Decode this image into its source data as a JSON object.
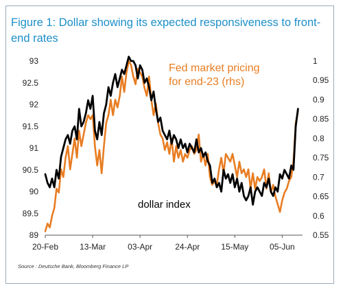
{
  "figure": {
    "title": "Figure 1: Dollar showing its expected responsiveness to front-end rates",
    "source": "Source : Deutsche Bank, Bloomberg Finance LP"
  },
  "chart_data": {
    "type": "line",
    "title": "Figure 1: Dollar showing its expected responsiveness to front-end rates",
    "x_tick_labels": [
      "20-Feb",
      "13-Mar",
      "03-Apr",
      "24-Apr",
      "15-May",
      "05-Jun"
    ],
    "x_ticks_day": [
      0,
      21,
      42,
      63,
      84,
      105
    ],
    "x_range_day": [
      0,
      114
    ],
    "y_left": {
      "lim": [
        89,
        93
      ],
      "ticks": [
        89,
        89.5,
        90,
        90.5,
        91,
        91.5,
        92,
        92.5,
        93
      ]
    },
    "y_right": {
      "lim": [
        0.55,
        1.0
      ],
      "ticks": [
        0.55,
        0.6,
        0.65,
        0.7,
        0.75,
        0.8,
        0.85,
        0.9,
        0.95,
        1.0
      ]
    },
    "grid": false,
    "series": [
      {
        "name": "dollar index",
        "axis": "left",
        "color": "#000000",
        "x": [
          0,
          1,
          2,
          3,
          4,
          5,
          6,
          7,
          8,
          9,
          10,
          11,
          12,
          13,
          14,
          15,
          16,
          17,
          18,
          19,
          20,
          21,
          22,
          23,
          24,
          25,
          26,
          27,
          28,
          29,
          30,
          31,
          32,
          33,
          34,
          35,
          36,
          37,
          38,
          39,
          40,
          41,
          42,
          43,
          44,
          45,
          46,
          47,
          48,
          49,
          50,
          51,
          52,
          53,
          54,
          55,
          56,
          57,
          58,
          59,
          60,
          61,
          62,
          63,
          64,
          65,
          66,
          67,
          68,
          69,
          70,
          71,
          72,
          73,
          74,
          75,
          76,
          77,
          78,
          79,
          80,
          81,
          82,
          83,
          84,
          85,
          86,
          87,
          88,
          89,
          90,
          91,
          92,
          93,
          94,
          95,
          96,
          97,
          98,
          99,
          100,
          101,
          102,
          103,
          104,
          105,
          106,
          107,
          108,
          109,
          110,
          111,
          112
        ],
        "values": [
          90.4,
          90.2,
          90.1,
          90.3,
          90.1,
          90.5,
          90.3,
          90.8,
          91.0,
          91.2,
          91.3,
          91.1,
          91.4,
          91.5,
          91.2,
          91.9,
          91.5,
          91.6,
          91.8,
          92.1,
          91.9,
          92.2,
          91.4,
          91.2,
          91.6,
          91.3,
          91.8,
          92.0,
          92.4,
          92.2,
          92.5,
          92.7,
          92.4,
          92.6,
          92.8,
          92.7,
          92.9,
          93.1,
          93.0,
          93.0,
          92.9,
          92.6,
          92.9,
          92.8,
          92.5,
          92.6,
          92.4,
          92.1,
          92.3,
          91.9,
          91.6,
          91.7,
          91.4,
          91.3,
          91.2,
          91.4,
          91.1,
          91.3,
          91.2,
          91.0,
          91.2,
          91.0,
          91.1,
          90.9,
          91.1,
          91.0,
          90.9,
          91.2,
          90.9,
          91.0,
          90.8,
          90.9,
          90.7,
          90.6,
          90.2,
          90.3,
          90.1,
          90.2,
          90.0,
          90.5,
          90.3,
          90.4,
          90.2,
          90.4,
          90.1,
          90.3,
          90.0,
          90.2,
          89.9,
          89.8,
          89.9,
          90.1,
          89.7,
          90.0,
          90.1,
          90.0,
          89.9,
          90.2,
          90.1,
          90.3,
          90.0,
          89.9,
          90.1,
          90.0,
          90.4,
          90.3,
          90.5,
          90.4,
          90.3,
          90.6,
          90.5,
          91.5,
          91.9
        ]
      },
      {
        "name": "Fed market pricing for end-23 (rhs)",
        "axis": "right",
        "color": "#e87d22",
        "x": [
          0,
          1,
          2,
          3,
          4,
          5,
          6,
          7,
          8,
          9,
          10,
          11,
          12,
          13,
          14,
          15,
          16,
          17,
          18,
          19,
          20,
          21,
          22,
          23,
          24,
          25,
          26,
          27,
          28,
          29,
          30,
          31,
          32,
          33,
          34,
          35,
          36,
          37,
          38,
          39,
          40,
          41,
          42,
          43,
          44,
          45,
          46,
          47,
          48,
          49,
          50,
          51,
          52,
          53,
          54,
          55,
          56,
          57,
          58,
          59,
          60,
          61,
          62,
          63,
          64,
          65,
          66,
          67,
          68,
          69,
          70,
          71,
          72,
          73,
          74,
          75,
          76,
          77,
          78,
          79,
          80,
          81,
          82,
          83,
          84,
          85,
          86,
          87,
          88,
          89,
          90,
          91,
          92,
          93,
          94,
          95,
          96,
          97,
          98,
          99,
          100,
          101,
          102,
          103,
          104,
          105,
          106,
          107,
          108,
          109,
          110,
          111,
          112
        ],
        "values": [
          0.56,
          0.58,
          0.57,
          0.6,
          0.62,
          0.67,
          0.66,
          0.72,
          0.7,
          0.75,
          0.78,
          0.72,
          0.76,
          0.8,
          0.75,
          0.82,
          0.78,
          0.81,
          0.84,
          0.86,
          0.85,
          0.86,
          0.78,
          0.73,
          0.77,
          0.71,
          0.78,
          0.84,
          0.86,
          0.9,
          0.86,
          0.9,
          0.88,
          0.91,
          0.96,
          0.92,
          0.97,
          1.0,
          0.99,
          0.96,
          0.94,
          0.98,
          0.97,
          0.96,
          0.93,
          0.91,
          0.96,
          0.9,
          0.86,
          0.89,
          0.84,
          0.81,
          0.8,
          0.77,
          0.79,
          0.76,
          0.8,
          0.74,
          0.78,
          0.75,
          0.77,
          0.74,
          0.76,
          0.75,
          0.77,
          0.78,
          0.76,
          0.77,
          0.81,
          0.74,
          0.76,
          0.73,
          0.76,
          0.7,
          0.68,
          0.69,
          0.68,
          0.72,
          0.75,
          0.71,
          0.76,
          0.75,
          0.74,
          0.76,
          0.73,
          0.7,
          0.74,
          0.71,
          0.72,
          0.7,
          0.72,
          0.67,
          0.71,
          0.67,
          0.7,
          0.69,
          0.7,
          0.72,
          0.67,
          0.71,
          0.66,
          0.68,
          0.65,
          0.63,
          0.61,
          0.64,
          0.66,
          0.67,
          0.69,
          0.7,
          0.74,
          0.84,
          0.87
        ]
      }
    ],
    "annotations": [
      {
        "text": "Fed market pricing",
        "series": "right"
      },
      {
        "text": "for end-23 (rhs)",
        "series": "right"
      },
      {
        "text": "dollar index",
        "series": "left"
      }
    ]
  }
}
